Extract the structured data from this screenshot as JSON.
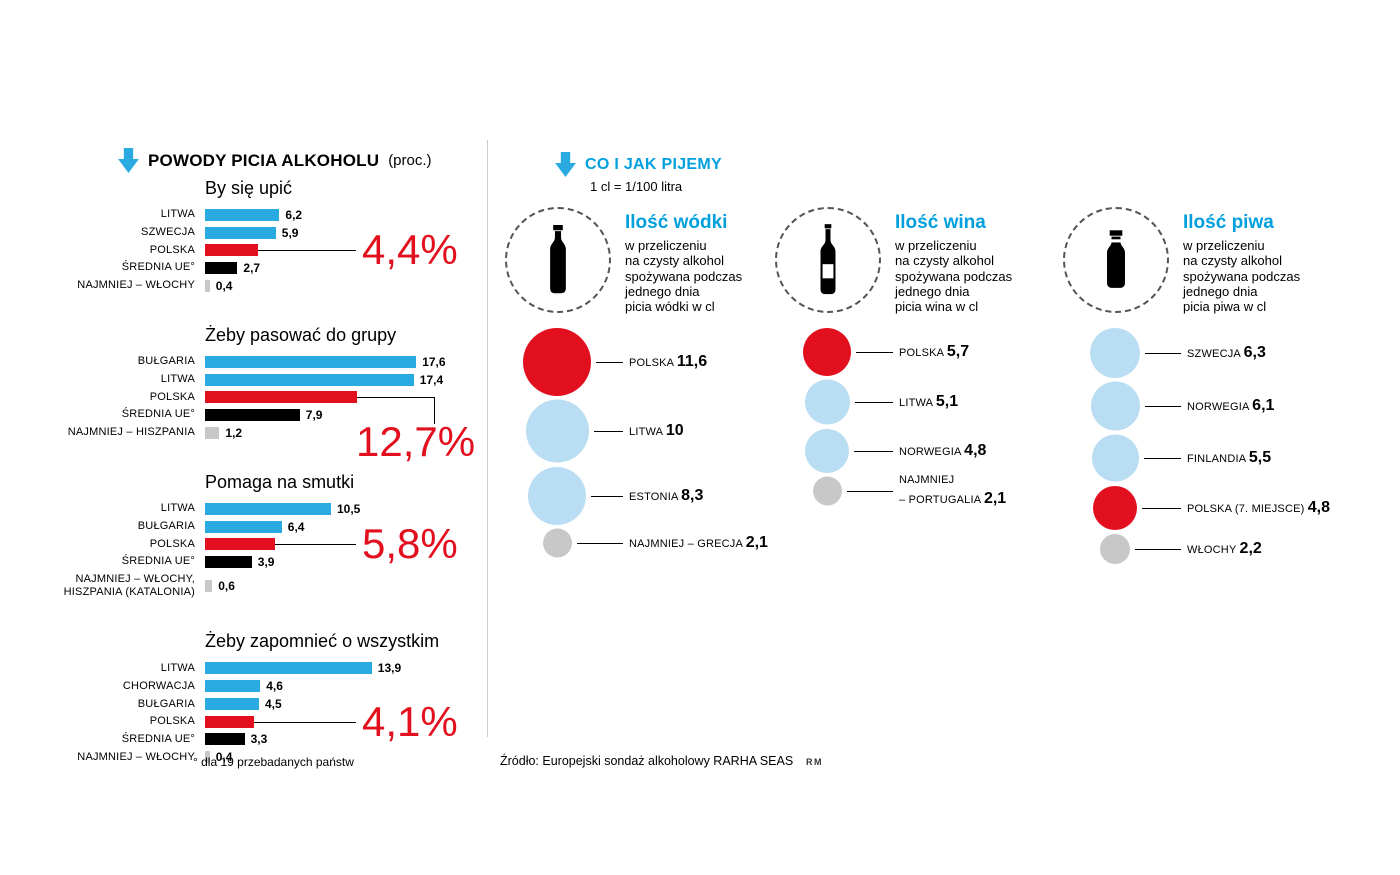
{
  "colors": {
    "blue": "#29abe2",
    "light_blue": "#b9ddf2",
    "red": "#e2101e",
    "black": "#000000",
    "gray": "#c8c8c8",
    "title_blue": "#00a0dd"
  },
  "left": {
    "header": {
      "title": "POWODY PICIA ALKOHOLU",
      "suffix": "(proc.)"
    },
    "footnote": "° dla 19 przebadanych państw"
  },
  "right": {
    "header": {
      "title": "CO I JAK PIJEMY",
      "subtitle": "1 cl = 1/100 litra"
    }
  },
  "footer": {
    "source": "Źródło: Europejski sondaż alkoholowy RARHA SEAS",
    "credit": "RM"
  },
  "chart_data": [
    {
      "type": "bar",
      "panel": "left",
      "title": "By się upić",
      "unit": "proc.",
      "categories": [
        "LITWA",
        "SZWECJA",
        "POLSKA",
        "ŚREDNIA UE°",
        "NAJMNIEJ – WŁOCHY"
      ],
      "values": [
        6.2,
        5.9,
        4.4,
        2.7,
        0.4
      ],
      "value_labels": [
        "6,2",
        "5,9",
        "",
        "2,7",
        "0,4"
      ],
      "colors": [
        "blue",
        "blue",
        "red",
        "black",
        "gray"
      ],
      "highlight": {
        "index": 2,
        "label": "4,4%",
        "style": "straight"
      }
    },
    {
      "type": "bar",
      "panel": "left",
      "title": "Żeby pasować do grupy",
      "unit": "proc.",
      "categories": [
        "BUŁGARIA",
        "LITWA",
        "POLSKA",
        "ŚREDNIA UE°",
        "NAJMNIEJ – HISZPANIA"
      ],
      "values": [
        17.6,
        17.4,
        12.7,
        7.9,
        1.2
      ],
      "value_labels": [
        "17,6",
        "17,4",
        "",
        "7,9",
        "1,2"
      ],
      "colors": [
        "blue",
        "blue",
        "red",
        "black",
        "gray"
      ],
      "highlight": {
        "index": 2,
        "label": "12,7%",
        "style": "elbow"
      }
    },
    {
      "type": "bar",
      "panel": "left",
      "title": "Pomaga na smutki",
      "unit": "proc.",
      "categories": [
        "LITWA",
        "BUŁGARIA",
        "POLSKA",
        "ŚREDNIA UE°",
        "NAJMNIEJ – WŁOCHY,\nHISZPANIA (KATALONIA)"
      ],
      "values": [
        10.5,
        6.4,
        5.8,
        3.9,
        0.6
      ],
      "value_labels": [
        "10,5",
        "6,4",
        "",
        "3,9",
        "0,6"
      ],
      "colors": [
        "blue",
        "blue",
        "red",
        "black",
        "gray"
      ],
      "highlight": {
        "index": 2,
        "label": "5,8%",
        "style": "straight"
      }
    },
    {
      "type": "bar",
      "panel": "left",
      "title": "Żeby zapomnieć o wszystkim",
      "unit": "proc.",
      "categories": [
        "LITWA",
        "CHORWACJA",
        "BUŁGARIA",
        "POLSKA",
        "ŚREDNIA UE°",
        "NAJMNIEJ – WŁOCHY"
      ],
      "values": [
        13.9,
        4.6,
        4.5,
        4.1,
        3.3,
        0.4
      ],
      "value_labels": [
        "13,9",
        "4,6",
        "4,5",
        "",
        "3,3",
        "0,4"
      ],
      "colors": [
        "blue",
        "blue",
        "blue",
        "red",
        "black",
        "gray"
      ],
      "highlight": {
        "index": 3,
        "label": "4,1%",
        "style": "straight"
      }
    },
    {
      "type": "bubble",
      "panel": "right",
      "title": "Ilość wódki",
      "unit": "cl",
      "icon": "vodka-bottle-icon",
      "description": [
        "w przeliczeniu",
        "na czysty alkohol",
        "spożywana podczas",
        "jednego dnia",
        "picia wódki w cl"
      ],
      "categories": [
        "POLSKA",
        "LITWA",
        "ESTONIA",
        "NAJMNIEJ – GRECJA"
      ],
      "values": [
        11.6,
        10,
        8.3,
        2.1
      ],
      "value_labels": [
        "11,6",
        "10",
        "8,3",
        "2,1"
      ],
      "colors": [
        "red",
        "light_blue",
        "light_blue",
        "gray"
      ]
    },
    {
      "type": "bubble",
      "panel": "right",
      "title": "Ilość wina",
      "unit": "cl",
      "icon": "wine-bottle-icon",
      "description": [
        "w przeliczeniu",
        "na czysty alkohol",
        "spożywana podczas",
        "jednego dnia",
        "picia wina w cl"
      ],
      "categories": [
        "POLSKA",
        "LITWA",
        "NORWEGIA",
        "NAJMNIEJ\n– PORTUGALIA"
      ],
      "values": [
        5.7,
        5.1,
        4.8,
        2.1
      ],
      "value_labels": [
        "5,7",
        "5,1",
        "4,8",
        "2,1"
      ],
      "colors": [
        "red",
        "light_blue",
        "light_blue",
        "gray"
      ]
    },
    {
      "type": "bubble",
      "panel": "right",
      "title": "Ilość piwa",
      "unit": "cl",
      "icon": "beer-bottle-icon",
      "description": [
        "w przeliczeniu",
        "na czysty alkohol",
        "spożywana podczas",
        "jednego dnia",
        "picia piwa w cl"
      ],
      "categories": [
        "SZWECJA",
        "NORWEGIA",
        "FINLANDIA",
        "POLSKA (7. MIEJSCE)",
        "WŁOCHY"
      ],
      "values": [
        6.3,
        6.1,
        5.5,
        4.8,
        2.2
      ],
      "value_labels": [
        "6,3",
        "6,1",
        "5,5",
        "4,8",
        "2,2"
      ],
      "colors": [
        "light_blue",
        "light_blue",
        "light_blue",
        "red",
        "gray"
      ]
    }
  ]
}
